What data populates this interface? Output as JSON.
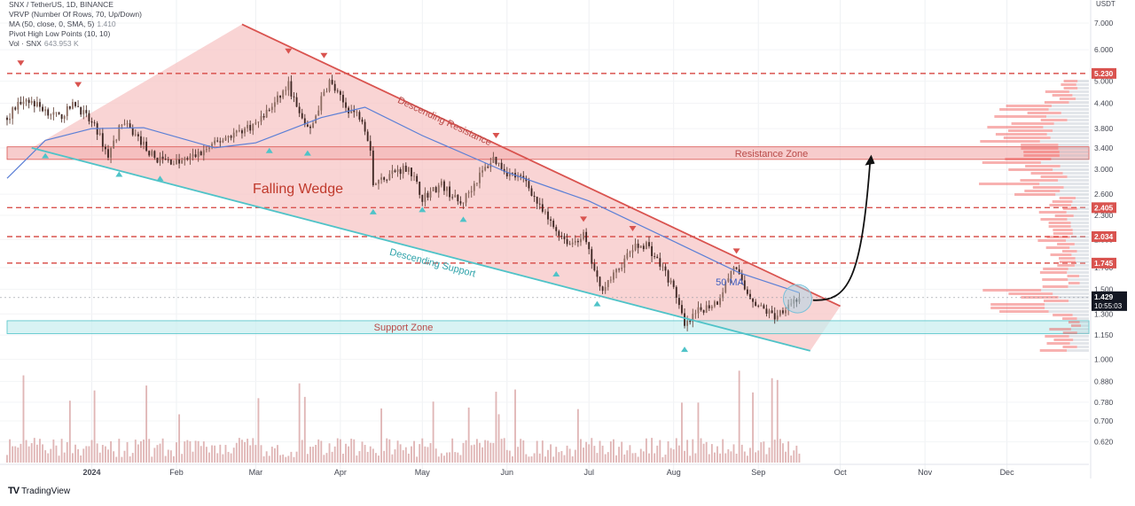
{
  "legend": {
    "symbol": "SNX / TetherUS, 1D, BINANCE",
    "vrvp": "VRVP (Number Of Rows, 70, Up/Down)",
    "ma_label": "MA (50, close, 0, SMA, 5)",
    "ma_value": "1.410",
    "pivot": "Pivot High Low Points (10, 10)",
    "vol_label": "Vol · SNX",
    "vol_value": "643.953 K"
  },
  "currency": "USDT",
  "brand": "TradingView",
  "colors": {
    "up": "#26a69a",
    "down": "#ef5350",
    "candle_dark": "#5d4037",
    "wedge_fill": "#f7c5c5",
    "resistance": "#d9534f",
    "support": "#4fc3c8",
    "ma": "#5b7fd6",
    "zone_red": "#f4b6b6",
    "zone_cyan": "#c8eef0",
    "volume": "#d8a4a4"
  },
  "chart_data": {
    "type": "candlestick",
    "title": "SNX / TetherUS, 1D, BINANCE",
    "y_scale": "log",
    "ylim": [
      0.55,
      7.6
    ],
    "x_range": [
      "2023-12-01",
      "2024-12-31"
    ],
    "last_candle_date": "2024-09-16",
    "y_ticks": [
      "7.000",
      "6.000",
      "5.000",
      "4.400",
      "3.800",
      "3.400",
      "3.000",
      "2.600",
      "2.300",
      "2.000",
      "1.700",
      "1.500",
      "1.300",
      "1.150",
      "1.000",
      "0.880",
      "0.780",
      "0.700",
      "0.620"
    ],
    "x_ticks": [
      {
        "label": "2024",
        "date": "2024-01-01"
      },
      {
        "label": "Feb",
        "date": "2024-02-01"
      },
      {
        "label": "Mar",
        "date": "2024-03-01"
      },
      {
        "label": "Apr",
        "date": "2024-04-01"
      },
      {
        "label": "May",
        "date": "2024-05-01"
      },
      {
        "label": "Jun",
        "date": "2024-06-01"
      },
      {
        "label": "Jul",
        "date": "2024-07-01"
      },
      {
        "label": "Aug",
        "date": "2024-08-01"
      },
      {
        "label": "Sep",
        "date": "2024-09-01"
      },
      {
        "label": "Oct",
        "date": "2024-10-01"
      },
      {
        "label": "Nov",
        "date": "2024-11-01"
      },
      {
        "label": "Dec",
        "date": "2024-12-01"
      }
    ],
    "price_anchors": [
      {
        "date": "2023-12-01",
        "close": 4.05
      },
      {
        "date": "2023-12-07",
        "close": 4.55
      },
      {
        "date": "2023-12-12",
        "close": 4.35
      },
      {
        "date": "2023-12-20",
        "close": 4.05
      },
      {
        "date": "2023-12-26",
        "close": 4.4
      },
      {
        "date": "2024-01-03",
        "close": 3.75
      },
      {
        "date": "2024-01-07",
        "close": 3.25
      },
      {
        "date": "2024-01-12",
        "close": 3.95
      },
      {
        "date": "2024-01-18",
        "close": 3.6
      },
      {
        "date": "2024-01-24",
        "close": 3.2
      },
      {
        "date": "2024-02-02",
        "close": 3.12
      },
      {
        "date": "2024-02-10",
        "close": 3.3
      },
      {
        "date": "2024-02-20",
        "close": 3.65
      },
      {
        "date": "2024-03-01",
        "close": 3.9
      },
      {
        "date": "2024-03-08",
        "close": 4.4
      },
      {
        "date": "2024-03-13",
        "close": 4.9
      },
      {
        "date": "2024-03-17",
        "close": 4.1
      },
      {
        "date": "2024-03-21",
        "close": 3.75
      },
      {
        "date": "2024-03-25",
        "close": 4.5
      },
      {
        "date": "2024-03-28",
        "close": 5.0
      },
      {
        "date": "2024-04-03",
        "close": 4.3
      },
      {
        "date": "2024-04-09",
        "close": 4.05
      },
      {
        "date": "2024-04-12",
        "close": 3.4
      },
      {
        "date": "2024-04-13",
        "close": 2.75
      },
      {
        "date": "2024-04-20",
        "close": 2.95
      },
      {
        "date": "2024-04-26",
        "close": 3.05
      },
      {
        "date": "2024-05-01",
        "close": 2.55
      },
      {
        "date": "2024-05-08",
        "close": 2.75
      },
      {
        "date": "2024-05-15",
        "close": 2.45
      },
      {
        "date": "2024-05-22",
        "close": 2.9
      },
      {
        "date": "2024-05-27",
        "close": 3.2
      },
      {
        "date": "2024-06-01",
        "close": 2.95
      },
      {
        "date": "2024-06-08",
        "close": 2.8
      },
      {
        "date": "2024-06-13",
        "close": 2.4
      },
      {
        "date": "2024-06-18",
        "close": 2.15
      },
      {
        "date": "2024-06-24",
        "close": 1.95
      },
      {
        "date": "2024-06-29",
        "close": 2.05
      },
      {
        "date": "2024-07-05",
        "close": 1.5
      },
      {
        "date": "2024-07-10",
        "close": 1.62
      },
      {
        "date": "2024-07-17",
        "close": 1.9
      },
      {
        "date": "2024-07-22",
        "close": 1.95
      },
      {
        "date": "2024-07-29",
        "close": 1.65
      },
      {
        "date": "2024-08-02",
        "close": 1.45
      },
      {
        "date": "2024-08-05",
        "close": 1.2
      },
      {
        "date": "2024-08-10",
        "close": 1.32
      },
      {
        "date": "2024-08-17",
        "close": 1.4
      },
      {
        "date": "2024-08-23",
        "close": 1.72
      },
      {
        "date": "2024-08-27",
        "close": 1.5
      },
      {
        "date": "2024-09-01",
        "close": 1.36
      },
      {
        "date": "2024-09-07",
        "close": 1.28
      },
      {
        "date": "2024-09-12",
        "close": 1.38
      },
      {
        "date": "2024-09-16",
        "close": 1.43
      }
    ],
    "ma50_anchors": [
      {
        "date": "2023-12-01",
        "value": 2.85
      },
      {
        "date": "2023-12-15",
        "value": 3.55
      },
      {
        "date": "2024-01-01",
        "value": 3.8
      },
      {
        "date": "2024-01-20",
        "value": 3.82
      },
      {
        "date": "2024-02-15",
        "value": 3.4
      },
      {
        "date": "2024-03-01",
        "value": 3.5
      },
      {
        "date": "2024-03-25",
        "value": 4.05
      },
      {
        "date": "2024-04-10",
        "value": 4.3
      },
      {
        "date": "2024-05-01",
        "value": 3.65
      },
      {
        "date": "2024-06-01",
        "value": 2.95
      },
      {
        "date": "2024-07-01",
        "value": 2.5
      },
      {
        "date": "2024-08-01",
        "value": 1.98
      },
      {
        "date": "2024-08-25",
        "value": 1.65
      },
      {
        "date": "2024-09-16",
        "value": 1.47
      }
    ],
    "resistance_line": {
      "label": "Descending Resistance",
      "from": {
        "date": "2024-02-25",
        "price": 6.95
      },
      "to": {
        "date": "2024-10-01",
        "price": 1.36
      }
    },
    "support_line": {
      "label": "Descending Support",
      "from": {
        "date": "2023-12-10",
        "price": 3.4
      },
      "to": {
        "date": "2024-09-20",
        "price": 1.05
      }
    },
    "horizontal_levels": [
      {
        "price": 5.23,
        "label": "5.230"
      },
      {
        "price": 2.405,
        "label": "2.405"
      },
      {
        "price": 2.034,
        "label": "2.034"
      },
      {
        "price": 1.745,
        "label": "1.745"
      }
    ],
    "zones": [
      {
        "label": "Resistance Zone",
        "low": 3.18,
        "high": 3.42
      },
      {
        "label": "Support Zone",
        "low": 1.16,
        "high": 1.25
      }
    ],
    "current_price": {
      "value": "1.429",
      "countdown": "10:55:03"
    },
    "pattern_label": "Falling Wedge",
    "ma_label": "50 MA",
    "projection": {
      "from": {
        "date": "2024-09-21",
        "price": 1.43
      },
      "to": {
        "date": "2024-10-12",
        "price": 3.2
      }
    },
    "pivots_high": [
      {
        "date": "2023-12-06",
        "price": 5.55
      },
      {
        "date": "2023-12-27",
        "price": 4.9
      },
      {
        "date": "2024-03-13",
        "price": 5.95
      },
      {
        "date": "2024-03-26",
        "price": 5.8
      },
      {
        "date": "2024-05-28",
        "price": 3.65
      },
      {
        "date": "2024-06-29",
        "price": 2.25
      },
      {
        "date": "2024-07-17",
        "price": 2.13
      },
      {
        "date": "2024-08-24",
        "price": 1.87
      }
    ],
    "pivots_low": [
      {
        "date": "2023-12-15",
        "price": 3.25
      },
      {
        "date": "2024-01-11",
        "price": 2.92
      },
      {
        "date": "2024-01-26",
        "price": 2.85
      },
      {
        "date": "2024-03-06",
        "price": 3.35
      },
      {
        "date": "2024-03-20",
        "price": 3.3
      },
      {
        "date": "2024-04-13",
        "price": 2.35
      },
      {
        "date": "2024-05-01",
        "price": 2.38
      },
      {
        "date": "2024-05-16",
        "price": 2.25
      },
      {
        "date": "2024-06-19",
        "price": 1.64
      },
      {
        "date": "2024-07-04",
        "price": 1.38
      },
      {
        "date": "2024-08-05",
        "price": 1.06
      }
    ],
    "volume_profile_note": "VRVP histogram shown at right edge"
  }
}
